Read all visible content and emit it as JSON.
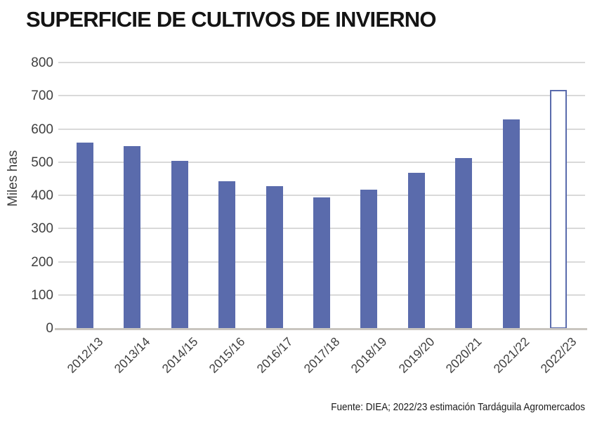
{
  "source_note": "Fuente: DIEA; 2022/23 estimación Tardáguila Agromercados",
  "chart_data": {
    "type": "bar",
    "title": "SUPERFICIE DE CULTIVOS DE INVIERNO",
    "ylabel": "Miles has",
    "xlabel": "",
    "ylim": [
      0,
      800
    ],
    "yticks": [
      0,
      100,
      200,
      300,
      400,
      500,
      600,
      700,
      800
    ],
    "grid": true,
    "legend": "none",
    "categories": [
      "2012/13",
      "2013/14",
      "2014/15",
      "2015/16",
      "2016/17",
      "2017/18",
      "2018/19",
      "2019/20",
      "2020/21",
      "2021/22",
      "2022/23"
    ],
    "values": [
      560,
      550,
      505,
      445,
      430,
      395,
      420,
      470,
      515,
      630,
      720
    ],
    "bar_styles": [
      "solid",
      "solid",
      "solid",
      "solid",
      "solid",
      "solid",
      "solid",
      "solid",
      "solid",
      "solid",
      "outline"
    ],
    "colors": {
      "bar_fill": "#5a6bac",
      "outline_bar_border": "#5a6bac",
      "outline_bar_fill": "#ffffff",
      "gridline": "#d9d9d9",
      "axis_line": "#c9c5bf",
      "tick_text": "#3f3f3f",
      "title_text": "#141414"
    }
  }
}
